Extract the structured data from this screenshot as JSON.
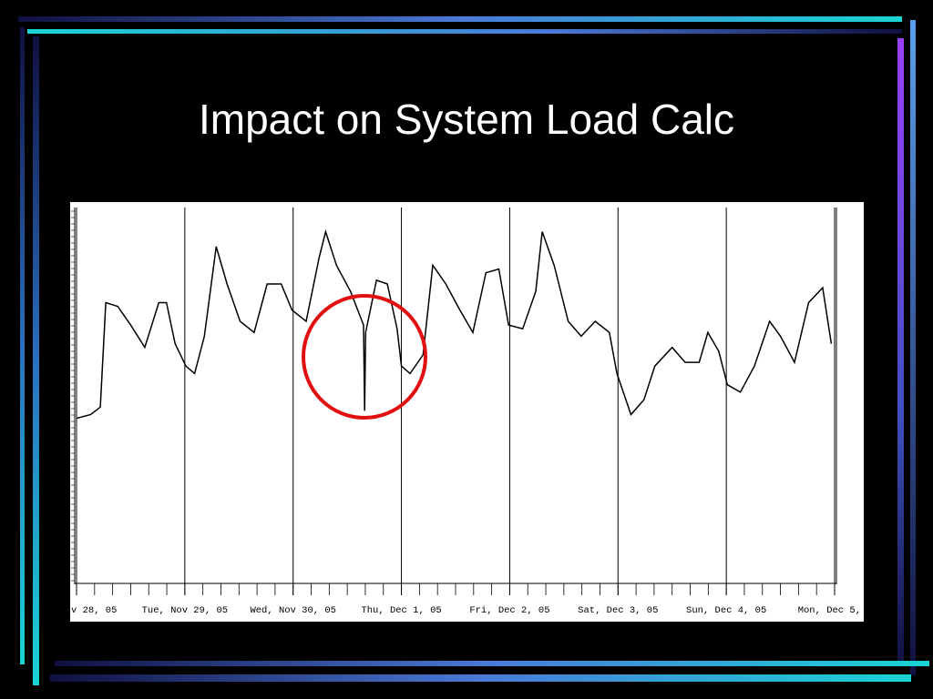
{
  "chart_data": {
    "type": "line",
    "title": "Impact on System Load Calc",
    "x": [
      0,
      0.13,
      0.22,
      0.27,
      0.38,
      0.5,
      0.63,
      0.76,
      0.83,
      0.91,
      1.01,
      1.09,
      1.18,
      1.29,
      1.39,
      1.51,
      1.64,
      1.76,
      1.89,
      1.99,
      2.12,
      2.24,
      2.3,
      2.4,
      2.53,
      2.65,
      2.66,
      2.67,
      2.77,
      2.87,
      2.96,
      3.0,
      3.08,
      3.2,
      3.29,
      3.41,
      3.54,
      3.66,
      3.78,
      3.9,
      3.99,
      4.12,
      4.24,
      4.3,
      4.41,
      4.54,
      4.66,
      4.79,
      4.92,
      4.99,
      5.12,
      5.24,
      5.34,
      5.5,
      5.62,
      5.75,
      5.83,
      5.93,
      6.01,
      6.13,
      6.26,
      6.4,
      6.5,
      6.63,
      6.76,
      6.89,
      6.97
    ],
    "values": [
      44,
      45,
      47,
      75,
      74,
      69,
      63,
      75,
      75,
      64,
      58,
      56,
      66,
      90,
      80,
      70,
      67,
      80,
      80,
      73,
      70,
      87,
      94,
      85,
      78,
      69,
      46,
      67,
      81,
      80,
      68,
      58,
      56,
      61,
      85,
      80,
      73,
      67,
      83,
      84,
      69,
      68,
      78,
      94,
      85,
      70,
      66,
      70,
      67,
      56,
      45,
      49,
      58,
      63,
      59,
      59,
      67,
      62,
      53,
      51,
      58,
      70,
      66,
      59,
      75,
      79,
      64
    ],
    "color": "#000000",
    "xlim": [
      0,
      7
    ],
    "xticks": [
      {
        "value": 0,
        "label": "v 28, 05"
      },
      {
        "value": 1,
        "label": "Tue, Nov 29, 05"
      },
      {
        "value": 2,
        "label": "Wed, Nov 30, 05"
      },
      {
        "value": 3,
        "label": "Thu, Dec 1, 05"
      },
      {
        "value": 4,
        "label": "Fri, Dec 2, 05"
      },
      {
        "value": 5,
        "label": "Sat, Dec 3, 05"
      },
      {
        "value": 6,
        "label": "Sun, Dec 4, 05"
      },
      {
        "value": 7,
        "label": "Mon, Dec 5,"
      }
    ],
    "ylim": [
      0,
      100
    ],
    "grid": true
  }
}
